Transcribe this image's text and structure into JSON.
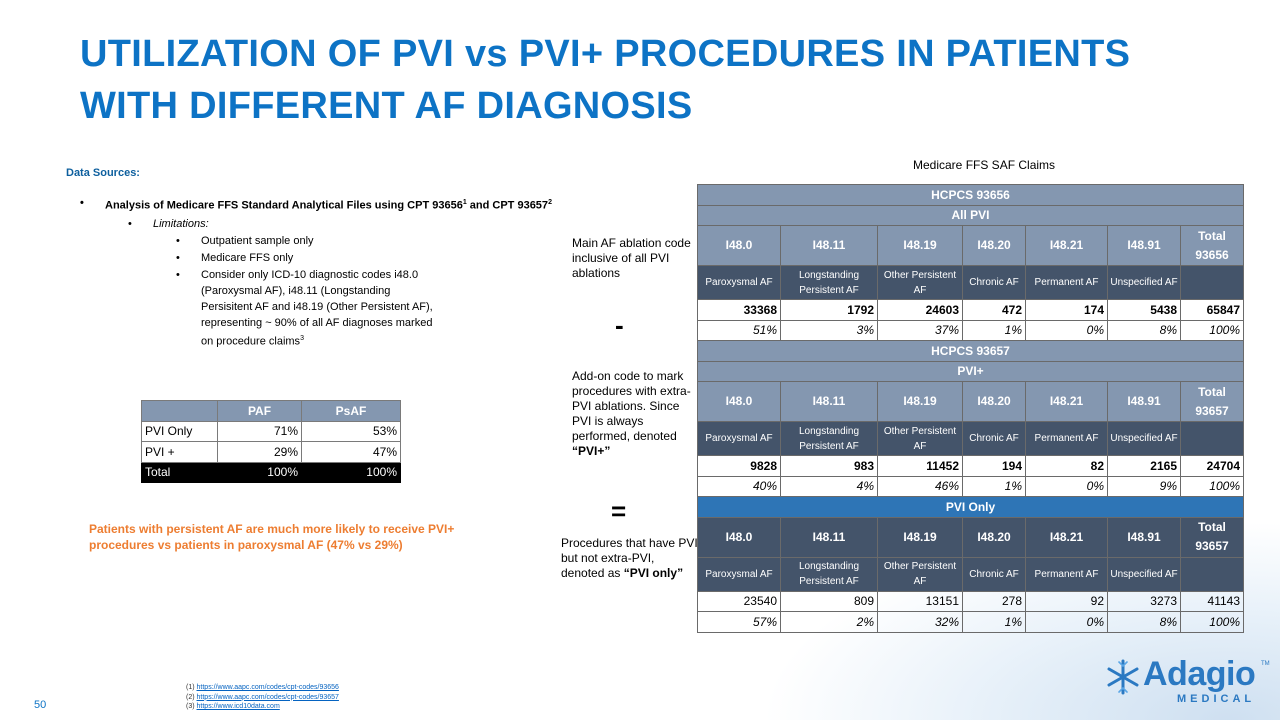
{
  "slide": {
    "title": "UTILIZATION OF PVI vs PVI+ PROCEDURES IN PATIENTS WITH DIFFERENT AF DIAGNOSIS",
    "page_number": "50",
    "accent_color": "#0d73c5"
  },
  "data_sources": {
    "heading": "Data Sources:",
    "analysis_prefix": "Analysis  of Medicare FFS Standard Analytical Files using CPT 93656",
    "sup1": "1",
    "analysis_mid": " and CPT 93657",
    "sup2": "2",
    "limitations_label": "Limitations:",
    "limitations": [
      "Outpatient sample only",
      "Medicare FFS only"
    ],
    "limitation3_text": "Consider only  ICD-10 diagnostic codes i48.0 (Paroxysmal AF), i48.11 (Longstanding Persisitent AF and i48.19 (Other Persistent AF), representing ~ 90% of all AF diagnoses marked on procedure claims",
    "sup3": "3"
  },
  "summary_table": {
    "headers": [
      "",
      "PAF",
      "PsAF"
    ],
    "rows": [
      {
        "label": "PVI Only",
        "paf": "71%",
        "psaf": "53%"
      },
      {
        "label": "PVI +",
        "paf": "29%",
        "psaf": "47%"
      }
    ],
    "total": {
      "label": "Total",
      "paf": "100%",
      "psaf": "100%"
    }
  },
  "finding": "Patients with persistent AF are much more likely to receive PVI+ procedures vs patients in paroxysmal AF (47%  vs 29%)",
  "side_notes": {
    "main": "Main AF ablation code inclusive  of all PVI ablations",
    "minus": "-",
    "addon_prefix": "Add-on code to mark procedures with extra-PVI ablations. Since PVI is always performed, denoted ",
    "addon_quote": "“PVI+”",
    "equals": "=",
    "pvionly_prefix": "Procedures that have PVI but not extra-PVI, denoted as ",
    "pvionly_quote": "“PVI only”"
  },
  "main_table": {
    "caption": "Medicare FFS SAF Claims",
    "descriptions": [
      "Paroxysmal AF",
      "Longstanding Persistent AF",
      "Other Persistent AF",
      "Chronic AF",
      "Permanent AF",
      "Unspecified AF",
      ""
    ],
    "sections": [
      {
        "hcpcs": "HCPCS 93656",
        "group": "All PVI",
        "codes": [
          "I48.0",
          "I48.11",
          "I48.19",
          "I48.20",
          "I48.21",
          "I48.91",
          "Total 93656"
        ],
        "counts": [
          "33368",
          "1792",
          "24603",
          "472",
          "174",
          "5438",
          "65847"
        ],
        "percents": [
          "51%",
          "3%",
          "37%",
          "1%",
          "0%",
          "8%",
          "100%"
        ]
      },
      {
        "hcpcs": "HCPCS 93657",
        "group": "PVI+",
        "codes": [
          "I48.0",
          "I48.11",
          "I48.19",
          "I48.20",
          "I48.21",
          "I48.91",
          "Total 93657"
        ],
        "counts": [
          "9828",
          "983",
          "11452",
          "194",
          "82",
          "2165",
          "24704"
        ],
        "percents": [
          "40%",
          "4%",
          "46%",
          "1%",
          "0%",
          "9%",
          "100%"
        ]
      },
      {
        "group": "PVI Only",
        "codes": [
          "I48.0",
          "I48.11",
          "I48.19",
          "I48.20",
          "I48.21",
          "I48.91",
          "Total 93657"
        ],
        "counts": [
          "23540",
          "809",
          "13151",
          "278",
          "92",
          "3273",
          "41143"
        ],
        "percents": [
          "57%",
          "2%",
          "32%",
          "1%",
          "0%",
          "8%",
          "100%"
        ]
      }
    ]
  },
  "footnotes": [
    {
      "num": "(1)",
      "link": "https://www.aapc.com/codes/cpt-codes/93656"
    },
    {
      "num": "(2)",
      "link": "https://www.aapc.com/codes/cpt-codes/93657"
    },
    {
      "num": "(3)",
      "link": "https://www.icd10data.com"
    }
  ],
  "logo": {
    "word": "Adagio",
    "tm": "TM",
    "sub": "MEDICAL"
  }
}
